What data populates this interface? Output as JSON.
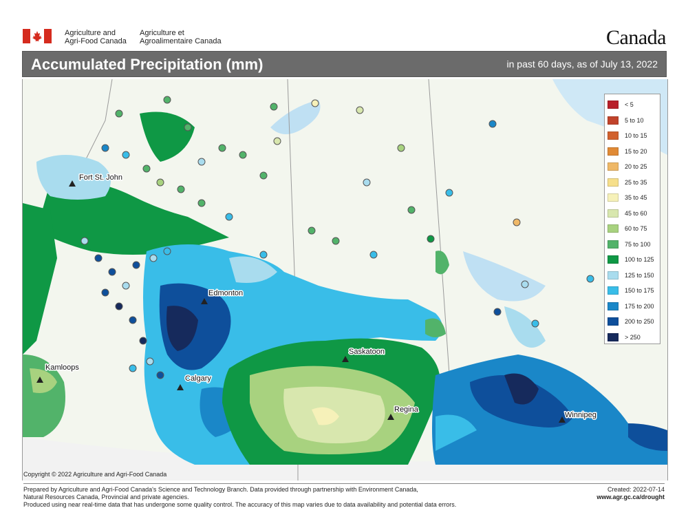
{
  "header": {
    "dept_en_line1": "Agriculture and",
    "dept_en_line2": "Agri-Food Canada",
    "dept_fr_line1": "Agriculture et",
    "dept_fr_line2": "Agroalimentaire Canada",
    "wordmark": "Canada"
  },
  "title_bar": {
    "title": "Accumulated Precipitation (mm)",
    "subtitle": "in past 60 days, as of July 13, 2022"
  },
  "map": {
    "cities": [
      {
        "name": "Fort St. John"
      },
      {
        "name": "Edmonton"
      },
      {
        "name": "Kamloops"
      },
      {
        "name": "Calgary"
      },
      {
        "name": "Saskatoon"
      },
      {
        "name": "Regina"
      },
      {
        "name": "Winnipeg"
      }
    ],
    "legend": [
      {
        "label": "< 5",
        "color": "#b8202a"
      },
      {
        "label": "5 to 10",
        "color": "#c1432b"
      },
      {
        "label": "10 to 15",
        "color": "#d1612d"
      },
      {
        "label": "15 to 20",
        "color": "#e08a35"
      },
      {
        "label": "20 to 25",
        "color": "#efb867"
      },
      {
        "label": "25 to 35",
        "color": "#f6df8b"
      },
      {
        "label": "35 to 45",
        "color": "#f6f1b9"
      },
      {
        "label": "45 to 60",
        "color": "#d8e7ae"
      },
      {
        "label": "60 to 75",
        "color": "#a8d27f"
      },
      {
        "label": "75 to 100",
        "color": "#52b36a"
      },
      {
        "label": "100 to 125",
        "color": "#0f9845"
      },
      {
        "label": "125 to 150",
        "color": "#a9dcee"
      },
      {
        "label": "150 to 175",
        "color": "#39bde8"
      },
      {
        "label": "175 to 200",
        "color": "#1a87c8"
      },
      {
        "label": "200 to 250",
        "color": "#0e4f9b"
      },
      {
        "label": "> 250",
        "color": "#162a5c"
      }
    ]
  },
  "copyright": "Copyright © 2022 Agriculture and Agri-Food Canada",
  "footer": {
    "line1": "Prepared by Agriculture and Agri-Food Canada's Science and Technology Branch. Data provided through partnership with Environment Canada,",
    "line2": "Natural Resources Canada, Provincial and private agencies.",
    "line3": "Produced using near real-time data that has undergone some quality control. The accuracy of this map varies due to data availability and potential data errors.",
    "created": "Created: 2022-07-14",
    "url": "www.agr.gc.ca/drought"
  },
  "icons": [
    "canada-flag-icon",
    "city-triangle-icon"
  ]
}
